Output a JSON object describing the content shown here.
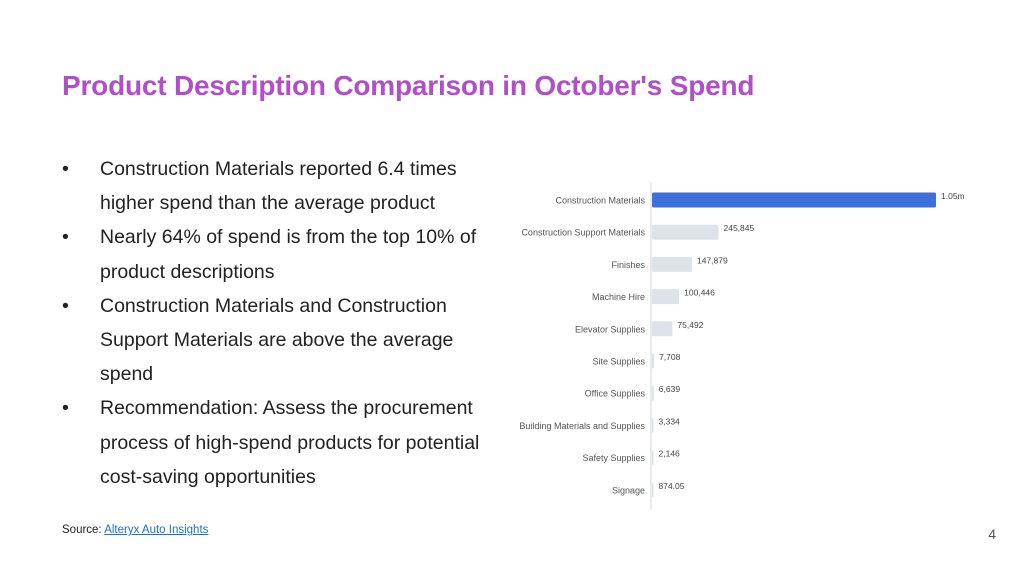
{
  "slide": {
    "title": "Product Description Comparison in October's Spend",
    "bullets": [
      "Construction Materials reported 6.4 times higher spend than the average product",
      "Nearly 64% of spend is from the top 10% of product descriptions",
      "Construction Materials and Construction Support Materials are above the average spend",
      "Recommendation: Assess the procurement process of high-spend products for potential cost-saving opportunities"
    ],
    "source_prefix": "Source: ",
    "source_link": "Alteryx Auto Insights",
    "page_number": "4"
  },
  "chart_data": {
    "type": "bar",
    "orientation": "horizontal",
    "categories": [
      "Construction Materials",
      "Construction Support Materials",
      "Finishes",
      "Machine Hire",
      "Elevator Supplies",
      "Site Supplies",
      "Office Supplies",
      "Building Materials and Supplies",
      "Safety Supplies",
      "Signage"
    ],
    "values": [
      1050000,
      245845,
      147879,
      100446,
      75492,
      7708,
      6639,
      3334,
      2146,
      874.05
    ],
    "value_labels": [
      "1.05m",
      "245,845",
      "147,879",
      "100,446",
      "75,492",
      "7,708",
      "6,639",
      "3,334",
      "2,146",
      "874.05"
    ],
    "highlight_index": 0,
    "colors": {
      "highlight": "#3f6fd8",
      "default": "#dde3ea",
      "axis": "#d4d4d4"
    },
    "xlim": [
      0,
      1050000
    ],
    "grid": false,
    "legend": "none"
  }
}
